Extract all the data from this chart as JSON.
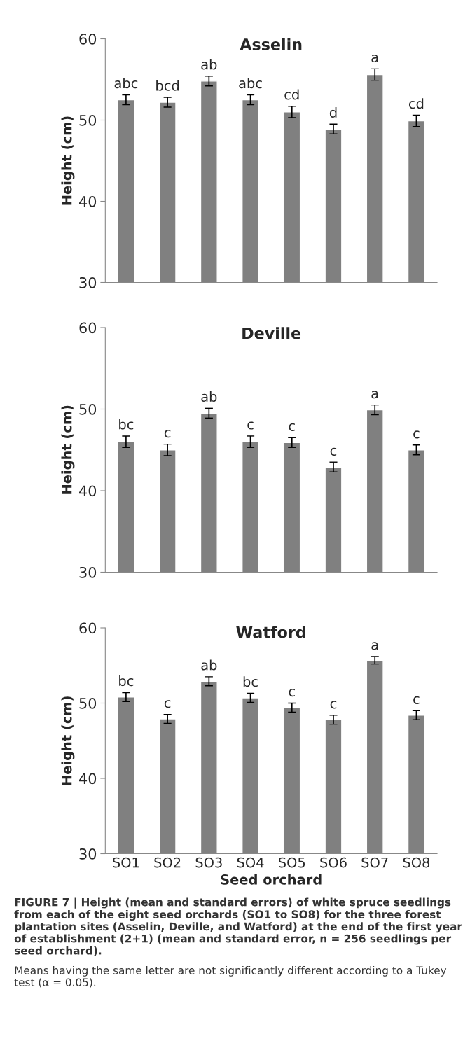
{
  "chart_data": [
    {
      "type": "bar",
      "title": "Asselin",
      "ylabel": "Height (cm)",
      "categories": [
        null,
        null,
        null,
        null,
        null,
        null,
        null,
        null
      ],
      "color": "#808080",
      "values": [
        52.5,
        52.2,
        54.8,
        52.5,
        51.0,
        48.9,
        55.6,
        49.9
      ],
      "errors": [
        0.6,
        0.6,
        0.6,
        0.6,
        0.7,
        0.6,
        0.7,
        0.7
      ],
      "value_labels": [
        "abc",
        "bcd",
        "ab",
        "abc",
        "cd",
        "d",
        "a",
        "cd"
      ],
      "ylim": [
        30,
        60
      ],
      "yticks": [
        30,
        40,
        50,
        60
      ],
      "tick_labels": "y",
      "grid": false
    },
    {
      "type": "bar",
      "title": "Deville",
      "ylabel": "Height (cm)",
      "categories": [
        null,
        null,
        null,
        null,
        null,
        null,
        null,
        null
      ],
      "color": "#808080",
      "values": [
        46.0,
        45.0,
        49.5,
        46.0,
        45.9,
        42.9,
        49.9,
        45.0
      ],
      "errors": [
        0.7,
        0.7,
        0.6,
        0.7,
        0.6,
        0.6,
        0.6,
        0.6
      ],
      "value_labels": [
        "bc",
        "c",
        "ab",
        "c",
        "c",
        "c",
        "a",
        "c"
      ],
      "ylim": [
        30,
        60
      ],
      "yticks": [
        30,
        40,
        50,
        60
      ],
      "tick_labels": "y",
      "grid": false
    },
    {
      "type": "bar",
      "title": "Watford",
      "ylabel": "Height (cm)",
      "xlabel": "Seed orchard",
      "categories": [
        "SO1",
        "SO2",
        "SO3",
        "SO4",
        "SO5",
        "SO6",
        "SO7",
        "SO8"
      ],
      "color": "#808080",
      "values": [
        50.8,
        47.9,
        52.9,
        50.7,
        49.4,
        47.8,
        55.7,
        48.4
      ],
      "errors": [
        0.6,
        0.6,
        0.6,
        0.6,
        0.6,
        0.6,
        0.5,
        0.6
      ],
      "value_labels": [
        "bc",
        "c",
        "ab",
        "bc",
        "c",
        "c",
        "a",
        "c"
      ],
      "ylim": [
        30,
        60
      ],
      "yticks": [
        30,
        40,
        50,
        60
      ],
      "grid": false,
      "annotations": [
        "FIGURE 7 | Height (mean and standard errors) of white spruce seedlings from each of the eight seed orchards (SO1 to SO8) for the three forest plantation sites (Asselin, Deville, and Watford) at the end of the first year of establishment (2+1) (mean and standard error, n = 256 seedlings per seed orchard).",
        "Means having the same letter are not significantly different according to a Tukey test (α = 0.05)."
      ]
    }
  ]
}
